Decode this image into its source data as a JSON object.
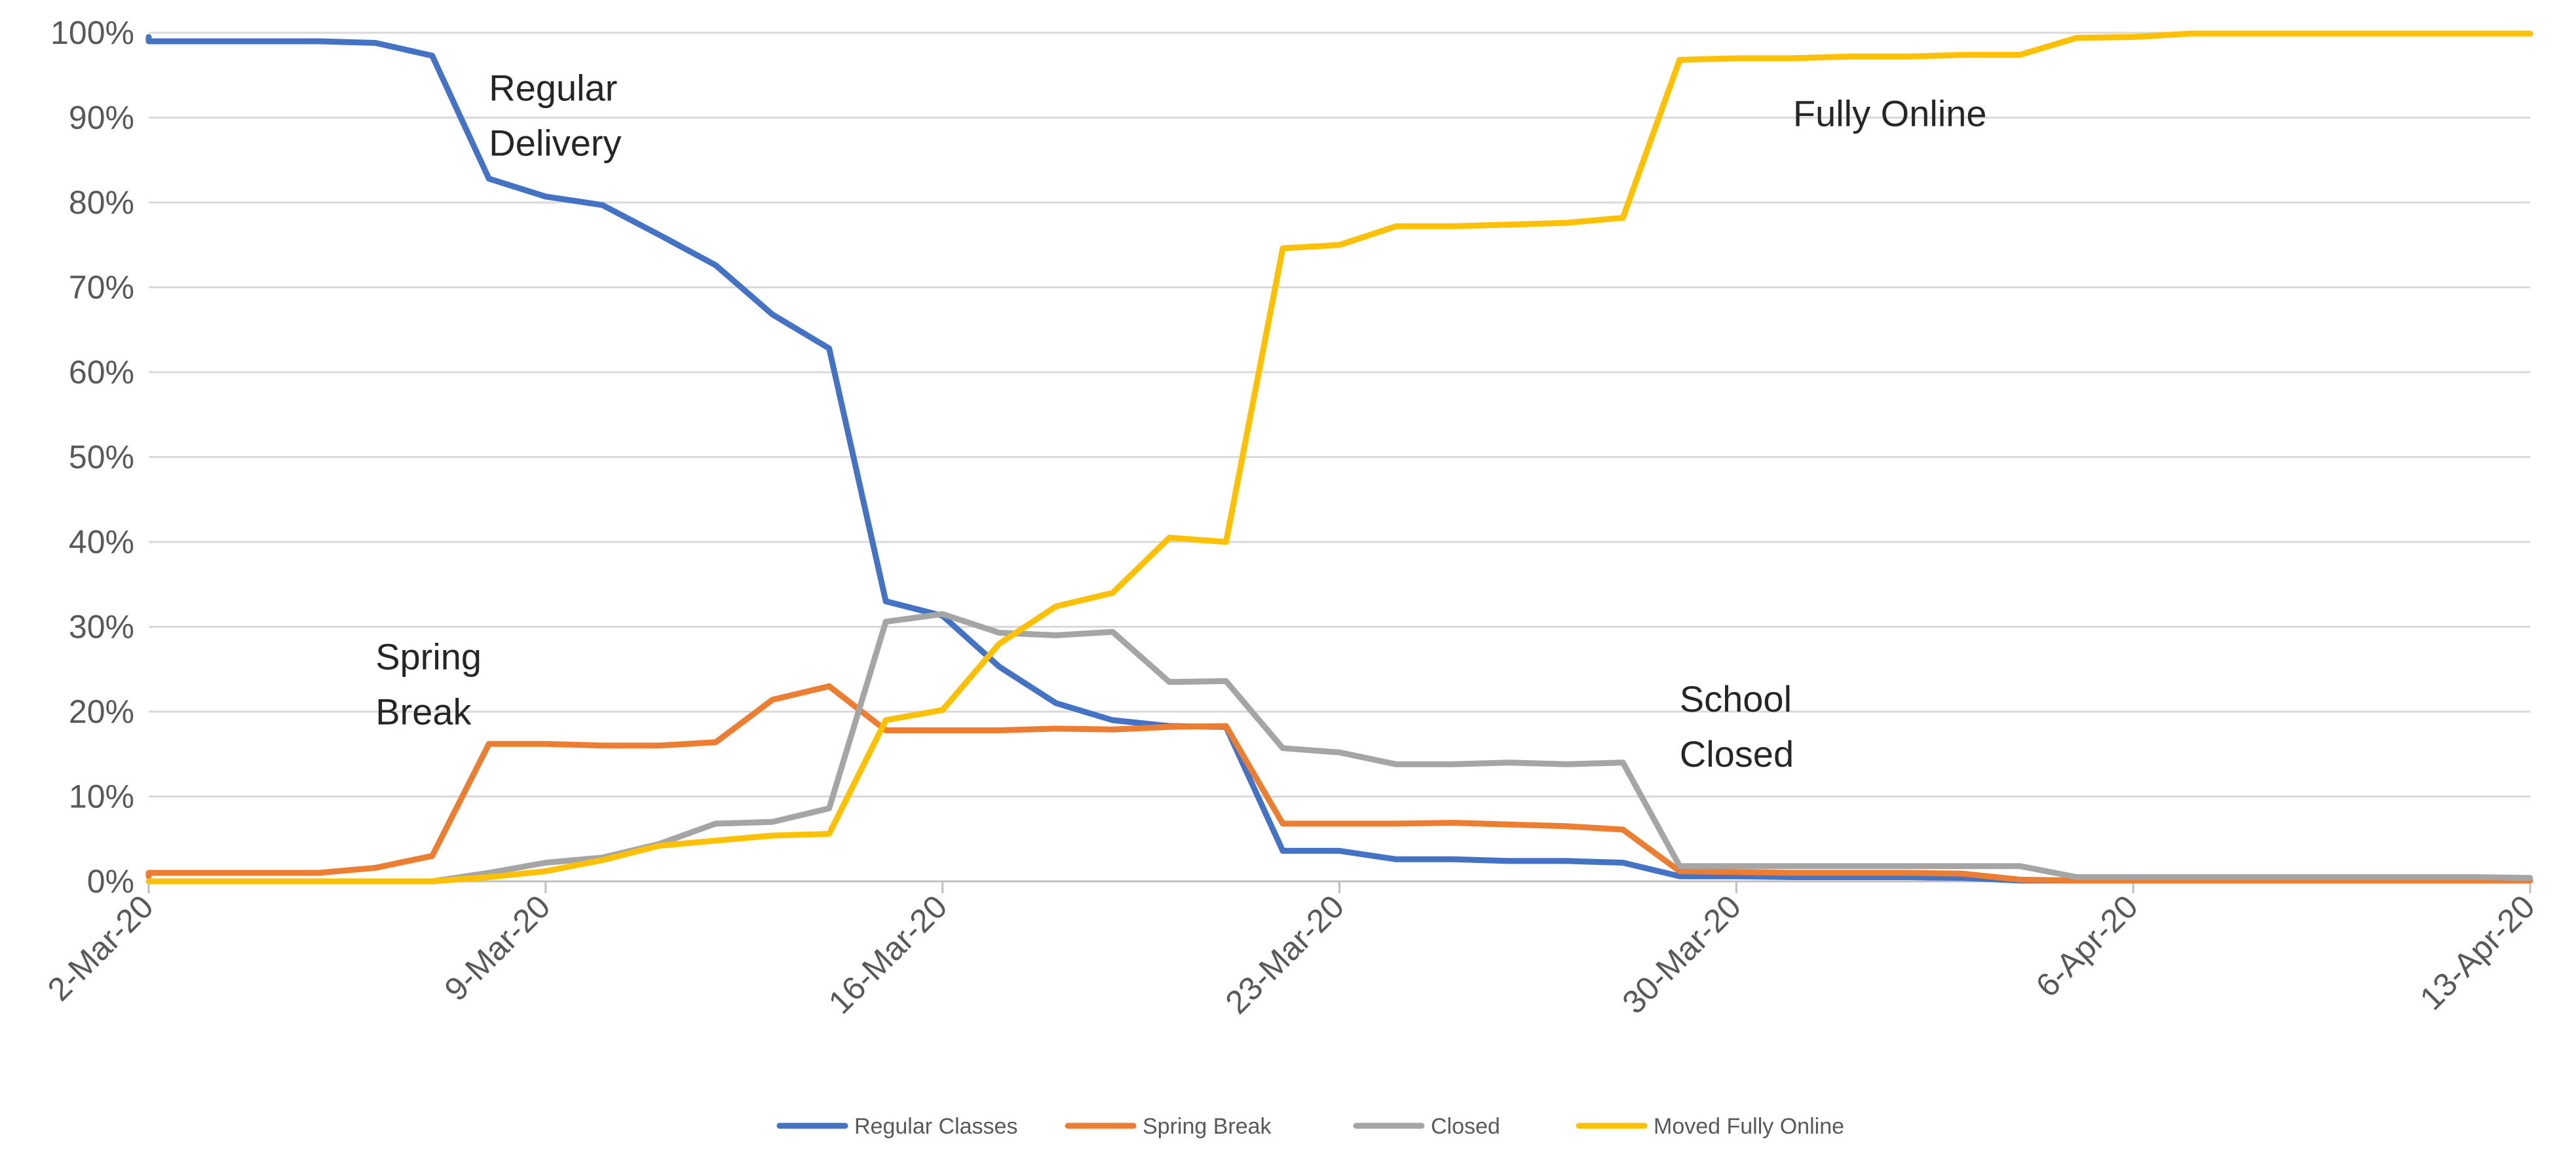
{
  "chart_data": {
    "type": "line",
    "title": "",
    "xlabel": "",
    "ylabel": "",
    "x_ticks": [
      "2-Mar-20",
      "9-Mar-20",
      "16-Mar-20",
      "23-Mar-20",
      "30-Mar-20",
      "6-Apr-20",
      "13-Apr-20"
    ],
    "y_ticks": [
      "0%",
      "10%",
      "20%",
      "30%",
      "40%",
      "50%",
      "60%",
      "70%",
      "80%",
      "90%",
      "100%"
    ],
    "ylim": [
      0,
      100
    ],
    "y_unit": "%",
    "xlim": [
      "2-Mar-20",
      "13-Apr-20"
    ],
    "grid": "horizontal",
    "legend_position": "bottom",
    "series": [
      {
        "name": "Regular Classes",
        "color": "#4472C4",
        "points": [
          [
            "2-Mar-20",
            99.5
          ],
          [
            "2-Mar-20",
            99.0
          ],
          [
            "3-Mar-20",
            99.0
          ],
          [
            "4-Mar-20",
            99.0
          ],
          [
            "5-Mar-20",
            99.0
          ],
          [
            "6-Mar-20",
            98.8
          ],
          [
            "7-Mar-20",
            97.3
          ],
          [
            "8-Mar-20",
            82.8
          ],
          [
            "9-Mar-20",
            80.7
          ],
          [
            "10-Mar-20",
            79.7
          ],
          [
            "11-Mar-20",
            76.2
          ],
          [
            "12-Mar-20",
            72.6
          ],
          [
            "13-Mar-20",
            66.8
          ],
          [
            "14-Mar-20",
            62.8
          ],
          [
            "15-Mar-20",
            33.0
          ],
          [
            "16-Mar-20",
            31.3
          ],
          [
            "17-Mar-20",
            25.3
          ],
          [
            "18-Mar-20",
            21.0
          ],
          [
            "19-Mar-20",
            19.0
          ],
          [
            "20-Mar-20",
            18.3
          ],
          [
            "21-Mar-20",
            18.2
          ],
          [
            "22-Mar-20",
            3.6
          ],
          [
            "23-Mar-20",
            3.6
          ],
          [
            "24-Mar-20",
            2.6
          ],
          [
            "25-Mar-20",
            2.6
          ],
          [
            "26-Mar-20",
            2.4
          ],
          [
            "27-Mar-20",
            2.4
          ],
          [
            "28-Mar-20",
            2.2
          ],
          [
            "29-Mar-20",
            0.6
          ],
          [
            "30-Mar-20",
            0.6
          ],
          [
            "31-Mar-20",
            0.5
          ],
          [
            "1-Apr-20",
            0.5
          ],
          [
            "2-Apr-20",
            0.5
          ],
          [
            "3-Apr-20",
            0.4
          ],
          [
            "4-Apr-20",
            0.1
          ],
          [
            "5-Apr-20",
            0.1
          ],
          [
            "6-Apr-20",
            0.1
          ],
          [
            "7-Apr-20",
            0.1
          ],
          [
            "8-Apr-20",
            0.1
          ],
          [
            "9-Apr-20",
            0.1
          ],
          [
            "10-Apr-20",
            0.1
          ],
          [
            "11-Apr-20",
            0.1
          ],
          [
            "12-Apr-20",
            0.1
          ],
          [
            "13-Apr-20",
            0.1
          ]
        ]
      },
      {
        "name": "Spring Break",
        "color": "#ED7D31",
        "points": [
          [
            "2-Mar-20",
            0.6
          ],
          [
            "2-Mar-20",
            1.0
          ],
          [
            "3-Mar-20",
            1.0
          ],
          [
            "4-Mar-20",
            1.0
          ],
          [
            "5-Mar-20",
            1.0
          ],
          [
            "6-Mar-20",
            1.6
          ],
          [
            "7-Mar-20",
            3.0
          ],
          [
            "8-Mar-20",
            16.2
          ],
          [
            "9-Mar-20",
            16.2
          ],
          [
            "10-Mar-20",
            16.0
          ],
          [
            "11-Mar-20",
            16.0
          ],
          [
            "12-Mar-20",
            16.4
          ],
          [
            "13-Mar-20",
            21.4
          ],
          [
            "14-Mar-20",
            23.0
          ],
          [
            "15-Mar-20",
            17.8
          ],
          [
            "16-Mar-20",
            17.8
          ],
          [
            "17-Mar-20",
            17.8
          ],
          [
            "18-Mar-20",
            18.0
          ],
          [
            "19-Mar-20",
            17.9
          ],
          [
            "20-Mar-20",
            18.2
          ],
          [
            "21-Mar-20",
            18.3
          ],
          [
            "22-Mar-20",
            6.8
          ],
          [
            "23-Mar-20",
            6.8
          ],
          [
            "24-Mar-20",
            6.8
          ],
          [
            "25-Mar-20",
            6.9
          ],
          [
            "26-Mar-20",
            6.7
          ],
          [
            "27-Mar-20",
            6.5
          ],
          [
            "28-Mar-20",
            6.1
          ],
          [
            "29-Mar-20",
            1.2
          ],
          [
            "30-Mar-20",
            1.1
          ],
          [
            "31-Mar-20",
            1.0
          ],
          [
            "1-Apr-20",
            1.0
          ],
          [
            "2-Apr-20",
            1.0
          ],
          [
            "3-Apr-20",
            0.9
          ],
          [
            "4-Apr-20",
            0.2
          ],
          [
            "5-Apr-20",
            0.1
          ],
          [
            "6-Apr-20",
            0.1
          ],
          [
            "7-Apr-20",
            0.1
          ],
          [
            "8-Apr-20",
            0.1
          ],
          [
            "9-Apr-20",
            0.1
          ],
          [
            "10-Apr-20",
            0.1
          ],
          [
            "11-Apr-20",
            0.1
          ],
          [
            "12-Apr-20",
            0.1
          ],
          [
            "13-Apr-20",
            0.1
          ]
        ]
      },
      {
        "name": "Closed",
        "color": "#A5A5A5",
        "points": [
          [
            "2-Mar-20",
            0.0
          ],
          [
            "7-Mar-20",
            0.0
          ],
          [
            "8-Mar-20",
            1.0
          ],
          [
            "9-Mar-20",
            2.2
          ],
          [
            "10-Mar-20",
            2.8
          ],
          [
            "11-Mar-20",
            4.4
          ],
          [
            "12-Mar-20",
            6.8
          ],
          [
            "13-Mar-20",
            7.0
          ],
          [
            "14-Mar-20",
            8.6
          ],
          [
            "15-Mar-20",
            30.6
          ],
          [
            "16-Mar-20",
            31.5
          ],
          [
            "17-Mar-20",
            29.3
          ],
          [
            "18-Mar-20",
            29.0
          ],
          [
            "19-Mar-20",
            29.4
          ],
          [
            "20-Mar-20",
            23.5
          ],
          [
            "21-Mar-20",
            23.6
          ],
          [
            "22-Mar-20",
            15.7
          ],
          [
            "23-Mar-20",
            15.2
          ],
          [
            "24-Mar-20",
            13.8
          ],
          [
            "25-Mar-20",
            13.8
          ],
          [
            "26-Mar-20",
            14.0
          ],
          [
            "27-Mar-20",
            13.8
          ],
          [
            "28-Mar-20",
            14.0
          ],
          [
            "29-Mar-20",
            1.8
          ],
          [
            "30-Mar-20",
            1.8
          ],
          [
            "31-Mar-20",
            1.8
          ],
          [
            "1-Apr-20",
            1.8
          ],
          [
            "2-Apr-20",
            1.8
          ],
          [
            "3-Apr-20",
            1.8
          ],
          [
            "4-Apr-20",
            1.8
          ],
          [
            "5-Apr-20",
            0.5
          ],
          [
            "6-Apr-20",
            0.5
          ],
          [
            "7-Apr-20",
            0.5
          ],
          [
            "8-Apr-20",
            0.5
          ],
          [
            "9-Apr-20",
            0.5
          ],
          [
            "10-Apr-20",
            0.5
          ],
          [
            "11-Apr-20",
            0.5
          ],
          [
            "12-Apr-20",
            0.5
          ],
          [
            "13-Apr-20",
            0.4
          ]
        ]
      },
      {
        "name": "Moved Fully Online",
        "color": "#FFC000",
        "points": [
          [
            "2-Mar-20",
            0.0
          ],
          [
            "7-Mar-20",
            0.0
          ],
          [
            "8-Mar-20",
            0.5
          ],
          [
            "9-Mar-20",
            1.2
          ],
          [
            "10-Mar-20",
            2.5
          ],
          [
            "11-Mar-20",
            4.2
          ],
          [
            "12-Mar-20",
            4.8
          ],
          [
            "13-Mar-20",
            5.4
          ],
          [
            "14-Mar-20",
            5.6
          ],
          [
            "15-Mar-20",
            19.0
          ],
          [
            "16-Mar-20",
            20.2
          ],
          [
            "17-Mar-20",
            28.0
          ],
          [
            "18-Mar-20",
            32.4
          ],
          [
            "19-Mar-20",
            34.0
          ],
          [
            "20-Mar-20",
            40.5
          ],
          [
            "21-Mar-20",
            40.0
          ],
          [
            "22-Mar-20",
            74.6
          ],
          [
            "23-Mar-20",
            75.0
          ],
          [
            "24-Mar-20",
            77.2
          ],
          [
            "25-Mar-20",
            77.2
          ],
          [
            "26-Mar-20",
            77.4
          ],
          [
            "27-Mar-20",
            77.6
          ],
          [
            "28-Mar-20",
            78.2
          ],
          [
            "29-Mar-20",
            96.8
          ],
          [
            "30-Mar-20",
            97.0
          ],
          [
            "31-Mar-20",
            97.0
          ],
          [
            "1-Apr-20",
            97.2
          ],
          [
            "2-Apr-20",
            97.2
          ],
          [
            "3-Apr-20",
            97.4
          ],
          [
            "4-Apr-20",
            97.4
          ],
          [
            "5-Apr-20",
            99.4
          ],
          [
            "6-Apr-20",
            99.5
          ],
          [
            "7-Apr-20",
            99.9
          ],
          [
            "8-Apr-20",
            99.9
          ],
          [
            "9-Apr-20",
            99.9
          ],
          [
            "10-Apr-20",
            99.9
          ],
          [
            "11-Apr-20",
            99.9
          ],
          [
            "12-Apr-20",
            99.9
          ],
          [
            "13-Apr-20",
            99.9
          ]
        ]
      }
    ],
    "annotations": [
      {
        "name": "regular-delivery",
        "lines": [
          "Regular",
          "Delivery"
        ],
        "at": [
          "8-Mar-20",
          92
        ]
      },
      {
        "name": "spring-break",
        "lines": [
          "Spring",
          "Break"
        ],
        "at": [
          "6-Mar-20",
          25
        ]
      },
      {
        "name": "fully-online",
        "lines": [
          "Fully Online"
        ],
        "at": [
          "31-Mar-20",
          89
        ]
      },
      {
        "name": "school-closed",
        "lines": [
          "School",
          "Closed"
        ],
        "at": [
          "29-Mar-20",
          20
        ]
      }
    ]
  }
}
